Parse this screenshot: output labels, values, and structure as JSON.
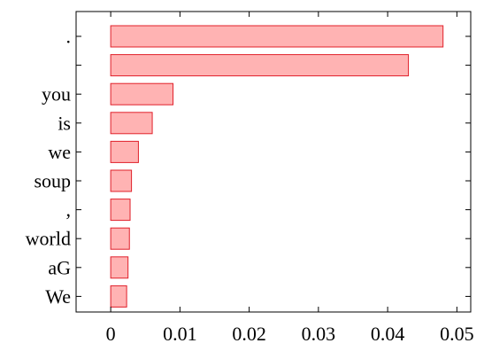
{
  "chart_data": {
    "type": "bar",
    "orientation": "horizontal",
    "categories": [
      ".",
      "",
      "you",
      "is",
      "we",
      "soup",
      ",",
      "world",
      "aG",
      "We"
    ],
    "values": [
      0.048,
      0.043,
      0.009,
      0.006,
      0.004,
      0.003,
      0.0028,
      0.0027,
      0.0025,
      0.0023
    ],
    "xlim": [
      -0.005,
      0.052
    ],
    "xticks": [
      0,
      0.01,
      0.02,
      0.03,
      0.04,
      0.05
    ],
    "xtick_labels": [
      "0",
      "0.01",
      "0.02",
      "0.03",
      "0.04",
      "0.05"
    ],
    "title": "",
    "xlabel": "",
    "ylabel": "",
    "grid": false,
    "colors": {
      "bar_fill": "#ffb3b3",
      "bar_stroke": "#e0202a",
      "axis": "#000000"
    }
  }
}
